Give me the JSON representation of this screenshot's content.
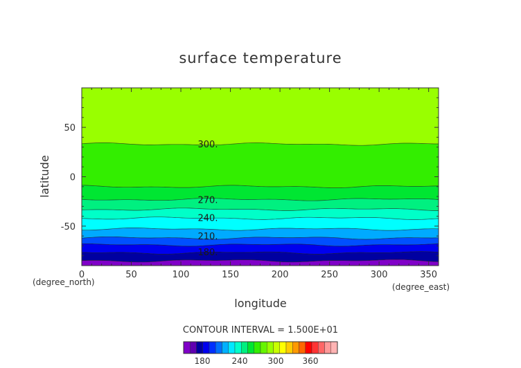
{
  "chart_data": {
    "type": "heatmap",
    "title": "surface temperature",
    "xlabel": "longitude",
    "ylabel": "latitude",
    "x_unit": "(degree_east)",
    "y_unit": "(degree_north)",
    "xlim": [
      0,
      360
    ],
    "ylim": [
      -90,
      90
    ],
    "x_ticks": [
      0,
      50,
      100,
      150,
      200,
      250,
      300,
      350
    ],
    "y_ticks": [
      50,
      0,
      -50
    ],
    "contour_interval_text": "CONTOUR INTERVAL = 1.500E+01",
    "contour_levels": [
      165,
      180,
      195,
      210,
      225,
      240,
      255,
      270,
      285,
      300
    ],
    "contour_labels": [
      "300.",
      "270.",
      "240.",
      "210.",
      "180."
    ],
    "bands": [
      {
        "low": 300,
        "high": 315,
        "color": "#99ff00",
        "y_top": 90,
        "y_bottom": 33
      },
      {
        "low": 285,
        "high": 300,
        "color": "#33ee00",
        "y_top": 33,
        "y_bottom": -10
      },
      {
        "low": 270,
        "high": 285,
        "color": "#00e632",
        "y_top": -10,
        "y_bottom": -23
      },
      {
        "low": 255,
        "high": 270,
        "color": "#00f080",
        "y_top": -23,
        "y_bottom": -33
      },
      {
        "low": 240,
        "high": 255,
        "color": "#00ffc8",
        "y_top": -33,
        "y_bottom": -42
      },
      {
        "low": 225,
        "high": 240,
        "color": "#00ffff",
        "y_top": -42,
        "y_bottom": -53
      },
      {
        "low": 210,
        "high": 225,
        "color": "#00aaff",
        "y_top": -53,
        "y_bottom": -62
      },
      {
        "low": 195,
        "high": 210,
        "color": "#0050ff",
        "y_top": -62,
        "y_bottom": -69
      },
      {
        "low": 180,
        "high": 195,
        "color": "#0000ee",
        "y_top": -69,
        "y_bottom": -77
      },
      {
        "low": 165,
        "high": 180,
        "color": "#0000a0",
        "y_top": -77,
        "y_bottom": -85
      },
      {
        "low": 150,
        "high": 165,
        "color": "#8000c8",
        "y_top": -85,
        "y_bottom": -90
      }
    ],
    "colorbar": {
      "tick_labels": [
        "180",
        "240",
        "300",
        "360"
      ],
      "colors": [
        "#8000c8",
        "#6000b0",
        "#0000a0",
        "#0000ee",
        "#0030ff",
        "#0070ff",
        "#00b0ff",
        "#00e8ff",
        "#00ffcc",
        "#00f080",
        "#00e632",
        "#33ee00",
        "#66f500",
        "#99ff00",
        "#c8ff00",
        "#ffff00",
        "#ffcc00",
        "#ff9900",
        "#ff6600",
        "#ff0000",
        "#ff3333",
        "#ff6666",
        "#ff9999",
        "#ffb3b3"
      ]
    }
  }
}
